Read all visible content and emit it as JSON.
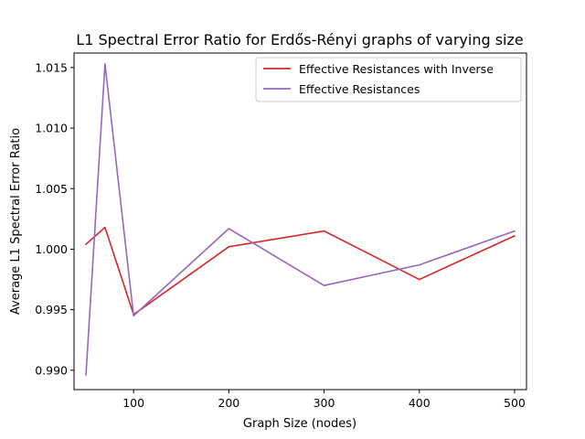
{
  "chart_data": {
    "type": "line",
    "title": "L1 Spectral Error Ratio for Erdős-Rényi graphs of varying size",
    "xlabel": "Graph Size (nodes)",
    "ylabel": "Average L1 Spectral Error Ratio",
    "xlim": [
      37.5,
      512.5
    ],
    "ylim": [
      0.9884,
      1.0162
    ],
    "xticks": [
      100,
      200,
      300,
      400,
      500
    ],
    "yticks": [
      0.99,
      0.995,
      1.0,
      1.005,
      1.01,
      1.015
    ],
    "ytick_labels": [
      "0.990",
      "0.995",
      "1.000",
      "1.005",
      "1.010",
      "1.015"
    ],
    "xtick_labels": [
      "100",
      "200",
      "300",
      "400",
      "500"
    ],
    "x": [
      50,
      70,
      100,
      200,
      300,
      400,
      500
    ],
    "series": [
      {
        "name": "Effective Resistances with Inverse",
        "color": "#d62728",
        "values": [
          1.0004,
          1.0018,
          0.9946,
          1.0002,
          1.0015,
          0.9975,
          1.0011
        ]
      },
      {
        "name": "Effective Resistances",
        "color": "#9467bd",
        "values": [
          0.9896,
          1.0153,
          0.9945,
          1.0017,
          0.997,
          0.9987,
          1.0015
        ]
      }
    ],
    "grid": false,
    "legend_position": "top-right"
  }
}
